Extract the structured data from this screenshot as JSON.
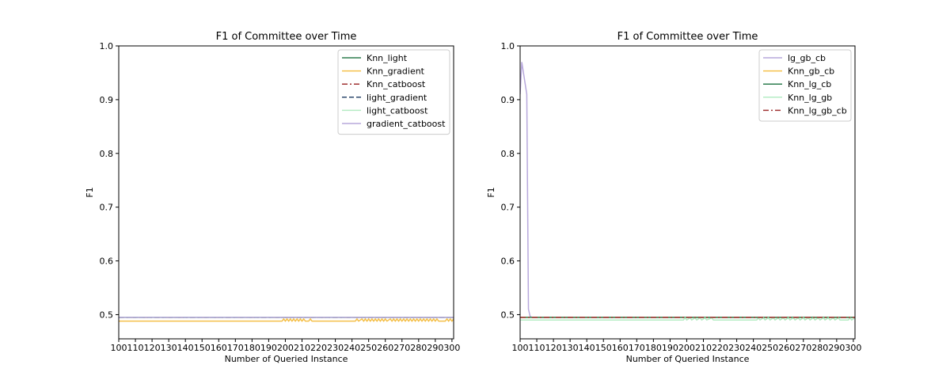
{
  "chart_data": [
    {
      "type": "line",
      "title": "F1 of Committee over Time",
      "xlabel": "Number of Queried Instance",
      "ylabel": "F1",
      "xlim": [
        100,
        301
      ],
      "ylim": [
        0.455,
        1.0
      ],
      "xticks": [
        100,
        110,
        120,
        130,
        140,
        150,
        160,
        170,
        180,
        190,
        200,
        210,
        220,
        230,
        240,
        250,
        260,
        270,
        280,
        290,
        300
      ],
      "yticks": [
        0.5,
        0.6,
        0.7,
        0.8,
        0.9,
        1.0
      ],
      "grid": false,
      "legend_position": "top-right",
      "series": [
        {
          "name": "Knn_light",
          "color": "#2e7d4f",
          "dash": "solid",
          "points": [
            [
              100,
              0.495
            ],
            [
              301,
              0.495
            ]
          ]
        },
        {
          "name": "Knn_gradient",
          "color": "#f5c04a",
          "dash": "solid",
          "points": [
            [
              100,
              0.488
            ],
            [
              198,
              0.488
            ],
            [
              199,
              0.492
            ],
            [
              200,
              0.488
            ],
            [
              201,
              0.492
            ],
            [
              202,
              0.488
            ],
            [
              203,
              0.492
            ],
            [
              204,
              0.488
            ],
            [
              205,
              0.492
            ],
            [
              206,
              0.488
            ],
            [
              207,
              0.492
            ],
            [
              208,
              0.488
            ],
            [
              209,
              0.492
            ],
            [
              210,
              0.488
            ],
            [
              211,
              0.492
            ],
            [
              212,
              0.488
            ],
            [
              214,
              0.488
            ],
            [
              215,
              0.492
            ],
            [
              216,
              0.488
            ],
            [
              242,
              0.488
            ],
            [
              243,
              0.492
            ],
            [
              244,
              0.488
            ],
            [
              246,
              0.492
            ],
            [
              247,
              0.488
            ],
            [
              248,
              0.492
            ],
            [
              249,
              0.488
            ],
            [
              250,
              0.492
            ],
            [
              251,
              0.488
            ],
            [
              252,
              0.492
            ],
            [
              253,
              0.488
            ],
            [
              254,
              0.492
            ],
            [
              255,
              0.488
            ],
            [
              256,
              0.492
            ],
            [
              257,
              0.488
            ],
            [
              258,
              0.492
            ],
            [
              259,
              0.488
            ],
            [
              260,
              0.492
            ],
            [
              261,
              0.488
            ],
            [
              263,
              0.492
            ],
            [
              264,
              0.488
            ],
            [
              265,
              0.492
            ],
            [
              266,
              0.488
            ],
            [
              267,
              0.492
            ],
            [
              268,
              0.488
            ],
            [
              269,
              0.492
            ],
            [
              270,
              0.488
            ],
            [
              271,
              0.492
            ],
            [
              272,
              0.488
            ],
            [
              273,
              0.492
            ],
            [
              274,
              0.488
            ],
            [
              275,
              0.492
            ],
            [
              276,
              0.488
            ],
            [
              277,
              0.492
            ],
            [
              278,
              0.488
            ],
            [
              279,
              0.492
            ],
            [
              280,
              0.488
            ],
            [
              281,
              0.492
            ],
            [
              282,
              0.488
            ],
            [
              283,
              0.492
            ],
            [
              284,
              0.488
            ],
            [
              285,
              0.492
            ],
            [
              286,
              0.488
            ],
            [
              287,
              0.492
            ],
            [
              288,
              0.488
            ],
            [
              289,
              0.492
            ],
            [
              290,
              0.488
            ],
            [
              291,
              0.492
            ],
            [
              292,
              0.488
            ],
            [
              296,
              0.488
            ],
            [
              297,
              0.492
            ],
            [
              298,
              0.488
            ],
            [
              299,
              0.492
            ],
            [
              300,
              0.488
            ],
            [
              301,
              0.492
            ]
          ]
        },
        {
          "name": "Knn_catboost",
          "color": "#a03232",
          "dash": "dashdot",
          "points": [
            [
              100,
              0.495
            ],
            [
              301,
              0.495
            ]
          ]
        },
        {
          "name": "light_gradient",
          "color": "#2e4a6e",
          "dash": "dashed",
          "points": [
            [
              100,
              0.495
            ],
            [
              301,
              0.495
            ]
          ]
        },
        {
          "name": "light_catboost",
          "color": "#b5ecc4",
          "dash": "solid",
          "points": [
            [
              100,
              0.495
            ],
            [
              301,
              0.495
            ]
          ]
        },
        {
          "name": "gradient_catboost",
          "color": "#b7a8dc",
          "dash": "solid",
          "points": [
            [
              100,
              0.495
            ],
            [
              301,
              0.495
            ]
          ]
        }
      ]
    },
    {
      "type": "line",
      "title": "F1 of Committee over Time",
      "xlabel": "Number of Queried Instance",
      "ylabel": "F1",
      "xlim": [
        100,
        301
      ],
      "ylim": [
        0.455,
        1.0
      ],
      "xticks": [
        100,
        110,
        120,
        130,
        140,
        150,
        160,
        170,
        180,
        190,
        200,
        210,
        220,
        230,
        240,
        250,
        260,
        270,
        280,
        290,
        300
      ],
      "yticks": [
        0.5,
        0.6,
        0.7,
        0.8,
        0.9,
        1.0
      ],
      "grid": false,
      "legend_position": "top-right",
      "series": [
        {
          "name": "lg_gb_cb",
          "color": "#b7a8dc",
          "dash": "solid",
          "points": [
            [
              100,
              0.91
            ],
            [
              101,
              0.97
            ],
            [
              102,
              0.95
            ],
            [
              103,
              0.93
            ],
            [
              104,
              0.91
            ],
            [
              105,
              0.51
            ],
            [
              106,
              0.497
            ],
            [
              107,
              0.495
            ],
            [
              301,
              0.495
            ]
          ]
        },
        {
          "name": "Knn_gb_cb",
          "color": "#f5c04a",
          "dash": "solid",
          "points": [
            [
              100,
              0.495
            ],
            [
              301,
              0.495
            ]
          ]
        },
        {
          "name": "Knn_lg_cb",
          "color": "#2e7d4f",
          "dash": "solid",
          "points": [
            [
              100,
              0.495
            ],
            [
              301,
              0.495
            ]
          ]
        },
        {
          "name": "Knn_lg_gb",
          "color": "#b5ecc4",
          "dash": "solid",
          "points": [
            [
              100,
              0.49
            ],
            [
              198,
              0.49
            ],
            [
              199,
              0.494
            ],
            [
              200,
              0.49
            ],
            [
              202,
              0.494
            ],
            [
              203,
              0.49
            ],
            [
              205,
              0.494
            ],
            [
              206,
              0.49
            ],
            [
              208,
              0.494
            ],
            [
              209,
              0.49
            ],
            [
              211,
              0.494
            ],
            [
              212,
              0.49
            ],
            [
              215,
              0.494
            ],
            [
              216,
              0.49
            ],
            [
              242,
              0.49
            ],
            [
              243,
              0.494
            ],
            [
              244,
              0.49
            ],
            [
              246,
              0.494
            ],
            [
              247,
              0.49
            ],
            [
              249,
              0.494
            ],
            [
              250,
              0.49
            ],
            [
              252,
              0.494
            ],
            [
              253,
              0.49
            ],
            [
              255,
              0.494
            ],
            [
              256,
              0.49
            ],
            [
              258,
              0.494
            ],
            [
              259,
              0.49
            ],
            [
              261,
              0.494
            ],
            [
              262,
              0.49
            ],
            [
              264,
              0.494
            ],
            [
              265,
              0.49
            ],
            [
              267,
              0.494
            ],
            [
              268,
              0.49
            ],
            [
              270,
              0.494
            ],
            [
              271,
              0.49
            ],
            [
              273,
              0.494
            ],
            [
              274,
              0.49
            ],
            [
              276,
              0.494
            ],
            [
              277,
              0.49
            ],
            [
              279,
              0.494
            ],
            [
              280,
              0.49
            ],
            [
              282,
              0.494
            ],
            [
              283,
              0.49
            ],
            [
              285,
              0.494
            ],
            [
              286,
              0.49
            ],
            [
              288,
              0.494
            ],
            [
              289,
              0.49
            ],
            [
              291,
              0.494
            ],
            [
              292,
              0.49
            ],
            [
              297,
              0.49
            ],
            [
              298,
              0.494
            ],
            [
              299,
              0.49
            ],
            [
              301,
              0.494
            ]
          ]
        },
        {
          "name": "Knn_lg_gb_cb",
          "color": "#a03232",
          "dash": "dashdot",
          "points": [
            [
              100,
              0.495
            ],
            [
              301,
              0.495
            ]
          ]
        }
      ]
    }
  ]
}
